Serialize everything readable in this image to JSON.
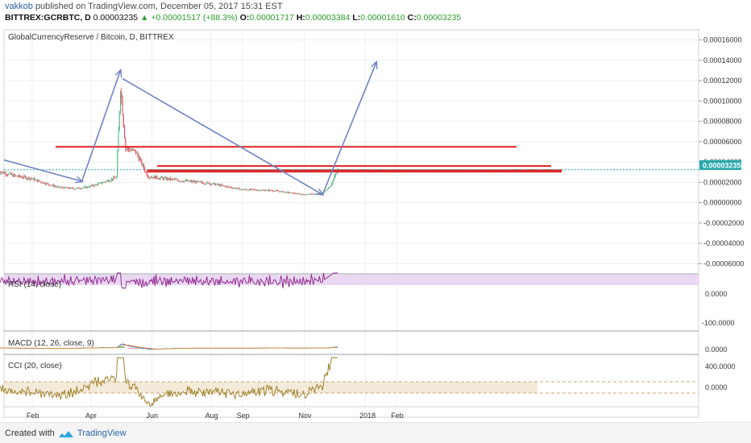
{
  "header": {
    "author": "vakkob",
    "published_text": "published on TradingView.com, December 05, 2017 15:31 EST",
    "symbol": "BITTREX:GCRBTC, D",
    "last": "0.00003235",
    "change": "▲ +0.00001517 (+88.3%)",
    "o_label": "O:",
    "o_value": "0.00001717",
    "h_label": "H:",
    "h_value": "0.00003384",
    "l_label": "L:",
    "l_value": "0.00001610",
    "c_label": "C:",
    "c_value": "0.00003235"
  },
  "footer": {
    "created_with": "Created with",
    "brand": "TradingView"
  },
  "colors": {
    "up": "#53b987",
    "down": "#eb4d5c",
    "arrow": "#6f83c4",
    "resistance": "#e02020",
    "rsi_line": "#8b1f8b",
    "rsi_band": "#ead8f2",
    "macd_line": "#2f76d2",
    "signal_line": "#e08a2c",
    "cci_line": "#9b7a1e",
    "cci_band": "#f3ead9",
    "price_label_bg": "#2aa9ad"
  },
  "chart_data": [
    {
      "type": "candlestick",
      "title": "GlobalCurrencyReserve / Bitcoin, D, BITTREX",
      "x_ticks": [
        "Feb",
        "Apr",
        "Jun",
        "Aug",
        "Sep",
        "Nov",
        "2018",
        "Feb"
      ],
      "y_ticks": [
        "0.00016000",
        "0.00014000",
        "0.00012000",
        "0.00010000",
        "0.00008000",
        "0.00006000",
        "0.00004000",
        "0.00002000",
        "0.00000000",
        "-0.00002000",
        "-0.00004000",
        "-0.00006000"
      ],
      "ylim": [
        -7e-05,
        0.00017
      ],
      "current_price_label": "0.00003235",
      "trend_points": [
        {
          "date": "Jan 05",
          "close": 3.1e-05
        },
        {
          "date": "Jan 20",
          "close": 2.65e-05
        },
        {
          "date": "Feb 05",
          "close": 2.4e-05
        },
        {
          "date": "Feb 20",
          "close": 1.9e-05
        },
        {
          "date": "Mar 05",
          "close": 1.5e-05
        },
        {
          "date": "Mar 20",
          "close": 1.4e-05
        },
        {
          "date": "Apr 01",
          "close": 1.5e-05
        },
        {
          "date": "Apr 15",
          "close": 1.9e-05
        },
        {
          "date": "May 01",
          "close": 2.5e-05
        },
        {
          "date": "May 05",
          "close": 0.000115
        },
        {
          "date": "May 10",
          "close": 5.4e-05
        },
        {
          "date": "May 20",
          "close": 5e-05
        },
        {
          "date": "Jun 01",
          "close": 2.6e-05
        },
        {
          "date": "Jun 15",
          "close": 2.4e-05
        },
        {
          "date": "Jul 01",
          "close": 2.2e-05
        },
        {
          "date": "Aug 01",
          "close": 1.9e-05
        },
        {
          "date": "Sep 01",
          "close": 1.3e-05
        },
        {
          "date": "Oct 01",
          "close": 1.2e-05
        },
        {
          "date": "Nov 01",
          "close": 8e-06
        },
        {
          "date": "Nov 20",
          "close": 9e-06
        },
        {
          "date": "Nov 28",
          "close": 1.7e-05
        },
        {
          "date": "Dec 05",
          "close": 3.24e-05
        }
      ],
      "resistance_lines": [
        5.5e-05,
        3.6e-05,
        3.2e-05,
        3.05e-05
      ],
      "arrows": [
        {
          "from": [
            "Jan 01",
            4.2e-05
          ],
          "to": [
            "Mar 28",
            2.1e-05
          ]
        },
        {
          "from": [
            "Mar 28",
            2.1e-05
          ],
          "to": [
            "May 05",
            0.00013
          ]
        },
        {
          "from": [
            "May 07",
            0.000122
          ],
          "to": [
            "Nov 20",
            8e-06
          ]
        },
        {
          "from": [
            "Nov 20",
            8e-06
          ],
          "to": [
            "Jan 12",
            0.000138
          ]
        }
      ]
    },
    {
      "type": "line",
      "title": "RSI (14, close)",
      "y_ticks": [
        "0.0000",
        "-100.0000"
      ],
      "ylim": [
        -150,
        100
      ]
    },
    {
      "type": "line",
      "title": "MACD (12, 26, close, 9)",
      "y_ticks": [
        "0.0000"
      ]
    },
    {
      "type": "line",
      "title": "CCI (20, close)",
      "y_ticks": [
        "400.0000",
        "0.0000"
      ],
      "ylim": [
        -150,
        500
      ],
      "band": [
        -100,
        100
      ]
    }
  ]
}
